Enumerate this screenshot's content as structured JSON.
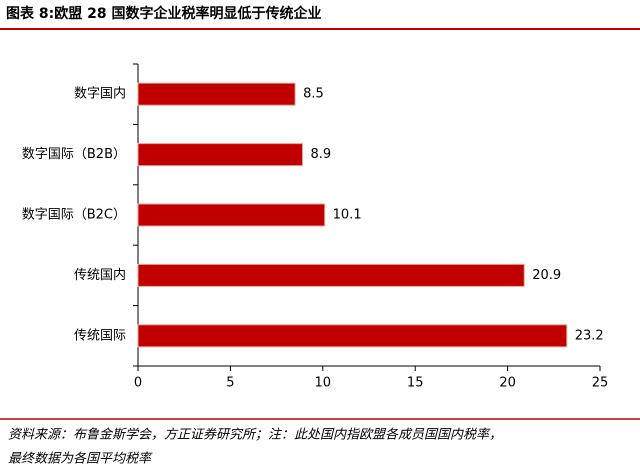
{
  "chart_data": {
    "type": "bar",
    "orientation": "horizontal",
    "title": "图表 8:欧盟 28 国数字企业税率明显低于传统企业",
    "categories": [
      "数字国内",
      "数字国际（B2B）",
      "数字国际（B2C）",
      "传统国内",
      "传统国际"
    ],
    "values": [
      8.5,
      8.9,
      10.1,
      20.9,
      23.2
    ],
    "color": "#c00000",
    "xlim": [
      0,
      25
    ],
    "xticks": [
      0,
      5,
      10,
      15,
      20,
      25
    ],
    "source": [
      "资料来源：布鲁金斯学会，方正证券研究所；注：此处国内指欧盟各成员国国内税率，",
      "最终数据为各国平均税率"
    ]
  }
}
